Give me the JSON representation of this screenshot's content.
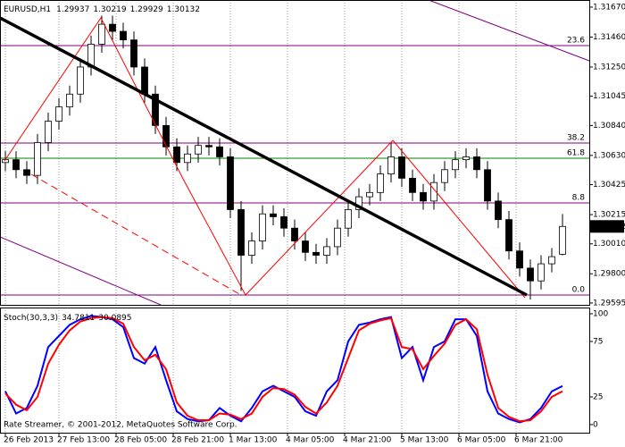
{
  "chart_data": [
    {
      "type": "candlestick",
      "title": "EURUSD,H1",
      "x": [
        0,
        3,
        6,
        9,
        12,
        15,
        18,
        21,
        24,
        27,
        30,
        33,
        36,
        39,
        42,
        45,
        48,
        51,
        54,
        57,
        60,
        63,
        66,
        69,
        72,
        75,
        78,
        81,
        84,
        87,
        90,
        93,
        96,
        99,
        102,
        105,
        108,
        111,
        114,
        117,
        120,
        123,
        126,
        129,
        132,
        135,
        138,
        141,
        144,
        147,
        150,
        153,
        156
      ],
      "open": [
        1.3058,
        1.306,
        1.3053,
        1.3049,
        1.3072,
        1.3087,
        1.3097,
        1.3106,
        1.3125,
        1.3141,
        1.3155,
        1.315,
        1.3144,
        1.3125,
        1.3106,
        1.3084,
        1.3069,
        1.3058,
        1.3064,
        1.307,
        1.3069,
        1.3062,
        1.3025,
        1.2993,
        1.3003,
        1.3022,
        1.302,
        1.3012,
        1.3003,
        1.2995,
        1.2993,
        1.2999,
        1.3012,
        1.3025,
        1.3034,
        1.3037,
        1.305,
        1.3062,
        1.3047,
        1.3037,
        1.3031,
        1.3044,
        1.3053,
        1.306,
        1.3062,
        1.3053,
        1.3031,
        1.3018,
        1.2996,
        1.2984,
        1.2975,
        1.2987,
        1.29937
      ],
      "high": [
        1.3066,
        1.3066,
        1.3059,
        1.3078,
        1.3093,
        1.3103,
        1.3112,
        1.3131,
        1.3147,
        1.3161,
        1.3161,
        1.3156,
        1.315,
        1.3131,
        1.3112,
        1.309,
        1.3075,
        1.307,
        1.3076,
        1.3076,
        1.3075,
        1.3068,
        1.3031,
        1.3009,
        1.3028,
        1.3028,
        1.3026,
        1.3018,
        1.3009,
        1.3001,
        1.3005,
        1.3018,
        1.3031,
        1.304,
        1.3043,
        1.3056,
        1.3072,
        1.3068,
        1.3053,
        1.3043,
        1.305,
        1.3059,
        1.3066,
        1.3068,
        1.3068,
        1.3059,
        1.3037,
        1.3024,
        1.3002,
        1.299,
        1.2993,
        1.2998,
        1.30219
      ],
      "low": [
        1.3052,
        1.3047,
        1.3043,
        1.3043,
        1.3066,
        1.3081,
        1.3091,
        1.31,
        1.3119,
        1.3135,
        1.3144,
        1.3138,
        1.3119,
        1.31,
        1.3078,
        1.3063,
        1.3052,
        1.3052,
        1.3058,
        1.3063,
        1.3056,
        1.3019,
        1.2968,
        1.2987,
        1.2997,
        1.3014,
        1.3006,
        1.2997,
        1.2989,
        1.2987,
        1.2987,
        1.2993,
        1.3006,
        1.3019,
        1.3028,
        1.3031,
        1.3044,
        1.3041,
        1.3031,
        1.3025,
        1.3025,
        1.3038,
        1.3047,
        1.3054,
        1.3047,
        1.3025,
        1.3012,
        1.299,
        1.2978,
        1.2962,
        1.2969,
        1.2981,
        1.29929
      ],
      "close": [
        1.306,
        1.3053,
        1.3049,
        1.3072,
        1.3087,
        1.3097,
        1.3106,
        1.3125,
        1.3141,
        1.3155,
        1.315,
        1.3144,
        1.3125,
        1.3106,
        1.3084,
        1.3069,
        1.3058,
        1.3064,
        1.307,
        1.3069,
        1.3062,
        1.3025,
        1.2993,
        1.3003,
        1.3022,
        1.302,
        1.3012,
        1.3003,
        1.2995,
        1.2993,
        1.2999,
        1.3012,
        1.3025,
        1.3034,
        1.3037,
        1.305,
        1.3062,
        1.3047,
        1.3037,
        1.3031,
        1.3044,
        1.3053,
        1.306,
        1.3062,
        1.3053,
        1.3031,
        1.3018,
        1.2996,
        1.2984,
        1.2975,
        1.2987,
        1.2992,
        1.30132
      ],
      "xlim": [
        -1.5,
        163.5
      ],
      "xticks": [
        {
          "value": 0,
          "label": "26 Feb 2013"
        },
        {
          "value": 15,
          "label": "27 Feb 13:00"
        },
        {
          "value": 31,
          "label": "28 Feb 05:00"
        },
        {
          "value": 47,
          "label": "28 Feb 21:00"
        },
        {
          "value": 63,
          "label": "1 Mar 13:00"
        },
        {
          "value": 79,
          "label": "4 Mar 05:00"
        },
        {
          "value": 95,
          "label": "4 Mar 21:00"
        },
        {
          "value": 111,
          "label": "5 Mar 13:00"
        },
        {
          "value": 127,
          "label": "6 Mar 05:00"
        },
        {
          "value": 143,
          "label": "6 Mar 21:00"
        }
      ],
      "ylim": [
        1.29582,
        1.3172
      ],
      "yticks": [
        {
          "value": 1.3167,
          "label": "1.31670"
        },
        {
          "value": 1.3146,
          "label": "1.31460"
        },
        {
          "value": 1.3125,
          "label": "1.31250"
        },
        1.31045,
        {
          "value": 1.3084,
          "label": "1.30840"
        },
        {
          "value": 1.3063,
          "label": "1.30630"
        },
        1.30425,
        1.30215,
        {
          "value": 1.3001,
          "label": "1.30010"
        },
        {
          "value": 1.298,
          "label": "1.29800"
        },
        1.29595
      ],
      "grid": "x",
      "bull_color": "#ffffff",
      "bear_color": "#000000",
      "fib_levels": [
        {
          "label": "23.6",
          "value": 1.314,
          "color": "#800080"
        },
        {
          "label": "38.2",
          "value": 1.30717,
          "color": "#800080"
        },
        {
          "label": "61.8",
          "value": 1.3061,
          "color": "#008000"
        },
        {
          "label": "8.8",
          "value": 1.30297,
          "color": "#800080"
        },
        {
          "label": "0.0",
          "value": 1.29651,
          "color": "#800080"
        }
      ]
    },
    {
      "type": "line",
      "title": "Stoch(30,3,3)",
      "ylim": [
        -7.3,
        105.6
      ],
      "yticks": [
        0,
        25,
        75,
        100
      ],
      "series": [
        {
          "color": "#0000ff",
          "values": [
            30,
            10,
            15,
            35,
            70,
            80,
            90,
            95,
            98,
            97,
            95,
            88,
            60,
            55,
            70,
            40,
            12,
            5,
            3,
            4,
            15,
            8,
            3,
            15,
            30,
            35,
            30,
            25,
            12,
            8,
            30,
            40,
            75,
            90,
            92,
            95,
            97,
            60,
            70,
            40,
            70,
            75,
            95,
            95,
            80,
            30,
            10,
            5,
            2,
            5,
            15,
            30,
            34.7811
          ]
        },
        {
          "color": "#ff0000",
          "values": [
            28,
            18,
            13,
            25,
            55,
            72,
            85,
            93,
            96,
            97,
            96,
            91,
            70,
            58,
            63,
            50,
            20,
            8,
            4,
            4,
            10,
            9,
            5,
            10,
            25,
            33,
            32,
            27,
            16,
            10,
            20,
            35,
            60,
            85,
            91,
            94,
            96,
            70,
            68,
            50,
            62,
            73,
            90,
            95,
            86,
            45,
            15,
            7,
            3,
            4,
            12,
            25,
            30.0895
          ]
        }
      ]
    }
  ],
  "watermark": "Rate Streamer, © 2001-2012, MetaQuotes Software Corp."
}
